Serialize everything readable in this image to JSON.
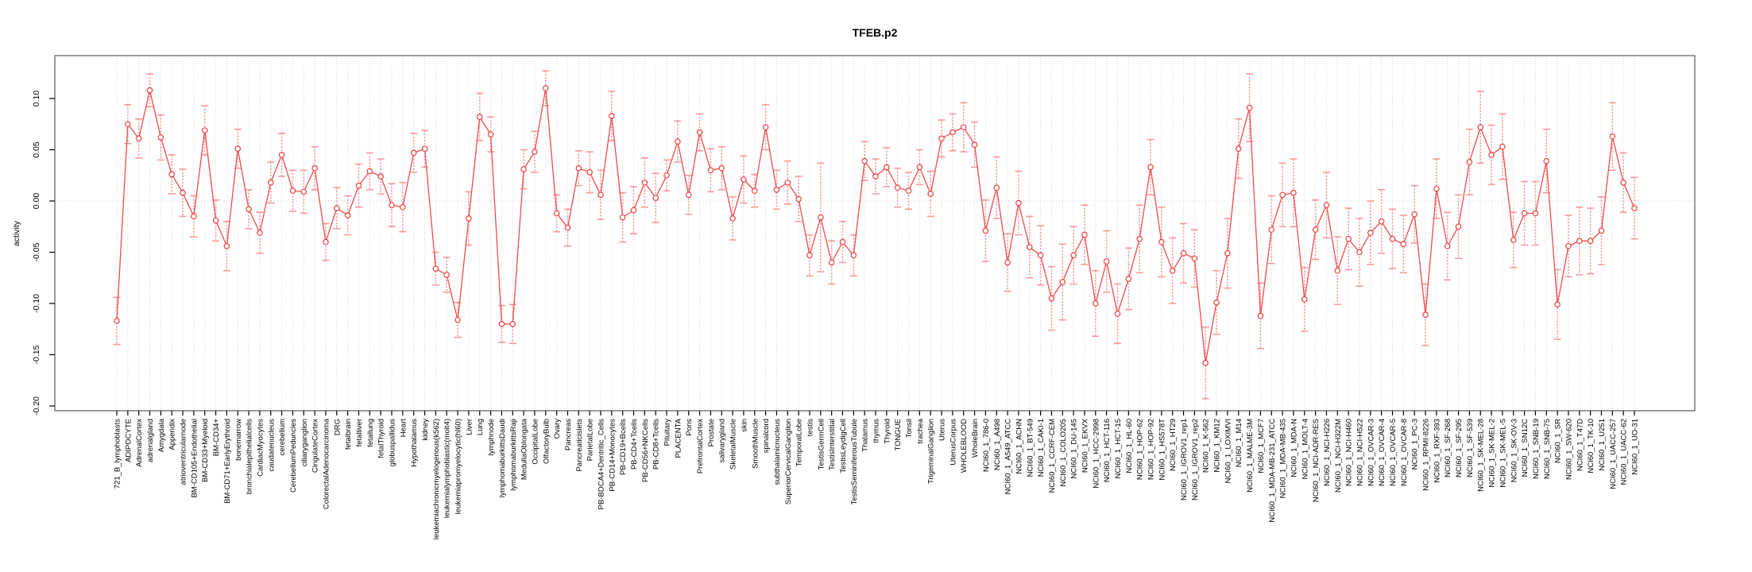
{
  "title": "TFEB.p2",
  "chart_data": {
    "type": "line",
    "title": "TFEB.p2",
    "xlabel": "",
    "ylabel": "activity",
    "ylim": [
      -0.21,
      0.14
    ],
    "yticks": [
      "0.10",
      "0.05",
      "0.00",
      "-0.05",
      "-0.10",
      "-0.15",
      "-0.20"
    ],
    "grid": "vertical dotted gridline per category; horizontal dotted line at y=0",
    "legend_position": "none",
    "marker": "open-circle",
    "error_bars": true,
    "colors": {
      "line": "#ef4b4b",
      "marker": "#e84040",
      "error_bar": "#f89b9b",
      "grid": "#d9d9d9",
      "zero_line": "#cccccc",
      "box": "#7a7a7a",
      "text": "#000000",
      "background": "#ffffff"
    },
    "categories": [
      "721_B_lymphoblasts",
      "ADIPOCYTE",
      "AdrenalCortex",
      "adrenalgland",
      "Amygdala",
      "Appendix",
      "atrioventricularnode",
      "BM-CD105+Endothelial",
      "BM-CD33+Myeloid",
      "BM-CD34+",
      "BM-CD71+EarlyErythroid",
      "bonemarrow",
      "bronchialepithelialcells",
      "CardiacMyocytes",
      "caudatenucleus",
      "cerebellum",
      "CerebellumPeduncles",
      "ciliaryganglion",
      "CingulateCortex",
      "ColorectalAdenocarcinoma",
      "DRG",
      "fetalbrain",
      "fetalliver",
      "fetallung",
      "fetalThyroid",
      "globuspallidus",
      "Heart",
      "Hypothalamus",
      "kidney",
      "leukemiachronicmyelogenous(k562)",
      "leukemialymphoblastic(molt4)",
      "leukemiapromyelocytic(hl60)",
      "Liver",
      "Lung",
      "lymphnode",
      "lymphomaburkittsDaudi",
      "lymphomaburkittsRaji",
      "MedullaOblongata",
      "OccipitalLobe",
      "OlfactoryBulb",
      "Ovary",
      "Pancreas",
      "Pancreaticislets",
      "ParietalLobe",
      "PB-BDCA4+Dentritic_Cells",
      "PB-CD14+Monocytes",
      "PB-CD19+Bcells",
      "PB-CD4+Tcells",
      "PB-CD56+NKCells",
      "PB-CD8+Tcells",
      "Pituitary",
      "PLACENTA",
      "Pons",
      "PrefrontalCortex",
      "Prostate",
      "salivarygland",
      "SkeletalMuscle",
      "skin",
      "SmoothMuscle",
      "spinalcord",
      "subthalamicnucleus",
      "SuperiorCervicalGanglion",
      "TemporalLobe",
      "testis",
      "TestisGermCell",
      "TestisInterstitial",
      "TestisLeydigCell",
      "TestisSeminiferousTubule",
      "Thalamus",
      "thymus",
      "Thyroid",
      "TONGUE",
      "Tonsil",
      "trachea",
      "TrigeminalGanglion",
      "Uterus",
      "UterusCorpus",
      "WHOLEBLOOD",
      "WholeBrain",
      "NCI60_1_786-0",
      "NCI60_1_A498",
      "NCI60_1_A549_ATCC",
      "NCI60_1_ACHN",
      "NCI60_1_BT-549",
      "NCI60_1_CAKI-1",
      "NCI60_1_CCRF-CEM",
      "NCI60_1_COLO205",
      "NCI60_1_DU-145",
      "NCI60_1_EKVX",
      "NCI60_1_HCC-2998",
      "NCI60_1_HCT-116",
      "NCI60_1_HCT-15",
      "NCI60_1_HL-60",
      "NCI60_1_HOP-62",
      "NCI60_1_HOP-92",
      "NCI60_1_HS578T",
      "NCI60_1_HT29",
      "NCI60_1_IGROV1_rep1",
      "NCI60_1_IGROV1_rep2",
      "NCI60_1_K-562",
      "NCI60_1_KM12",
      "NCI60_1_LOXIMVI",
      "NCI60_1_M14",
      "NCI60_1_MALME-3M",
      "NCI60_1_MCF7",
      "NCI60_1_MDA-MB-231_ATCC",
      "NCI60_1_MDA-MB-435",
      "NCI60_1_MDA-N",
      "NCI60_1_MOLT-4",
      "NCI60_1_NCI-ADR-RES",
      "NCI60_1_NCI-H226",
      "NCI60_1_NCI-H322M",
      "NCI60_1_NCI-H460",
      "NCI60_1_NCI-H522",
      "NCI60_1_OVCAR-3",
      "NCI60_1_OVCAR-4",
      "NCI60_1_OVCAR-5",
      "NCI60_1_OVCAR-8",
      "NCI60_1_PC-3",
      "NCI60_1_RPMI-8226",
      "NCI60_1_RXF-393",
      "NCI60_1_SF-268",
      "NCI60_1_SF-295",
      "NCI60_1_SF-539",
      "NCI60_1_SK-MEL-28",
      "NCI60_1_SK-MEL-2",
      "NCI60_1_SK-MEL-5",
      "NCI60_1_SK-OV-3",
      "NCI60_1_SN12C",
      "NCI60_1_SNB-19",
      "NCI60_1_SNB-75",
      "NCI60_1_SR",
      "NCI60_1_SW-620",
      "NCI60_1_T47D",
      "NCI60_1_TK-10",
      "NCI60_1_U251",
      "NCI60_1_UACC-257",
      "NCI60_1_UACC-62",
      "NCI60_1_UO-31"
    ],
    "values": [
      -0.117,
      0.075,
      0.061,
      0.108,
      0.062,
      0.026,
      0.008,
      -0.015,
      0.069,
      -0.019,
      -0.044,
      0.051,
      -0.008,
      -0.031,
      0.018,
      0.045,
      0.01,
      0.009,
      0.032,
      -0.04,
      -0.007,
      -0.014,
      0.015,
      0.029,
      0.024,
      -0.004,
      -0.006,
      0.047,
      0.051,
      -0.066,
      -0.072,
      -0.116,
      -0.017,
      0.082,
      0.065,
      -0.12,
      -0.12,
      0.031,
      0.048,
      0.11,
      -0.012,
      -0.026,
      0.032,
      0.028,
      0.006,
      0.083,
      -0.016,
      -0.009,
      0.018,
      0.003,
      0.025,
      0.058,
      0.006,
      0.067,
      0.03,
      0.032,
      -0.017,
      0.021,
      0.01,
      0.072,
      0.011,
      0.018,
      0.002,
      -0.053,
      -0.016,
      -0.06,
      -0.04,
      -0.053,
      0.039,
      0.024,
      0.033,
      0.013,
      0.01,
      0.033,
      0.007,
      0.061,
      0.067,
      0.072,
      0.055,
      -0.029,
      0.013,
      -0.06,
      -0.002,
      -0.045,
      -0.053,
      -0.095,
      -0.079,
      -0.053,
      -0.033,
      -0.1,
      -0.059,
      -0.11,
      -0.076,
      -0.037,
      0.033,
      -0.04,
      -0.068,
      -0.051,
      -0.056,
      -0.158,
      -0.099,
      -0.051,
      0.051,
      0.091,
      -0.112,
      -0.028,
      0.006,
      0.008,
      -0.096,
      -0.028,
      -0.004,
      -0.068,
      -0.037,
      -0.05,
      -0.031,
      -0.02,
      -0.037,
      -0.042,
      -0.013,
      -0.111,
      0.012,
      -0.044,
      -0.025,
      0.038,
      0.072,
      0.045,
      0.053,
      -0.038,
      -0.012,
      -0.012,
      0.039,
      -0.101,
      -0.044,
      -0.039,
      -0.039,
      -0.029,
      0.063,
      0.018,
      -0.007
    ],
    "errors": [
      0.023,
      0.019,
      0.019,
      0.016,
      0.022,
      0.019,
      0.023,
      0.02,
      0.024,
      0.02,
      0.024,
      0.019,
      0.019,
      0.02,
      0.02,
      0.021,
      0.02,
      0.021,
      0.021,
      0.018,
      0.02,
      0.019,
      0.021,
      0.018,
      0.017,
      0.021,
      0.024,
      0.019,
      0.018,
      0.016,
      0.017,
      0.017,
      0.026,
      0.023,
      0.017,
      0.018,
      0.019,
      0.019,
      0.02,
      0.017,
      0.018,
      0.018,
      0.017,
      0.02,
      0.024,
      0.024,
      0.024,
      0.023,
      0.024,
      0.024,
      0.015,
      0.02,
      0.019,
      0.018,
      0.021,
      0.021,
      0.021,
      0.023,
      0.016,
      0.022,
      0.019,
      0.021,
      0.022,
      0.02,
      0.053,
      0.021,
      0.02,
      0.02,
      0.019,
      0.017,
      0.019,
      0.019,
      0.018,
      0.017,
      0.022,
      0.018,
      0.018,
      0.024,
      0.022,
      0.03,
      0.03,
      0.028,
      0.031,
      0.03,
      0.029,
      0.031,
      0.037,
      0.028,
      0.029,
      0.032,
      0.03,
      0.029,
      0.03,
      0.033,
      0.027,
      0.034,
      0.032,
      0.029,
      0.028,
      0.035,
      0.031,
      0.034,
      0.029,
      0.033,
      0.032,
      0.033,
      0.031,
      0.033,
      0.031,
      0.029,
      0.032,
      0.033,
      0.03,
      0.033,
      0.031,
      0.031,
      0.029,
      0.028,
      0.028,
      0.03,
      0.029,
      0.033,
      0.031,
      0.032,
      0.035,
      0.029,
      0.032,
      0.027,
      0.031,
      0.031,
      0.031,
      0.034,
      0.03,
      0.033,
      0.032,
      0.033,
      0.033,
      0.029,
      0.03
    ]
  }
}
